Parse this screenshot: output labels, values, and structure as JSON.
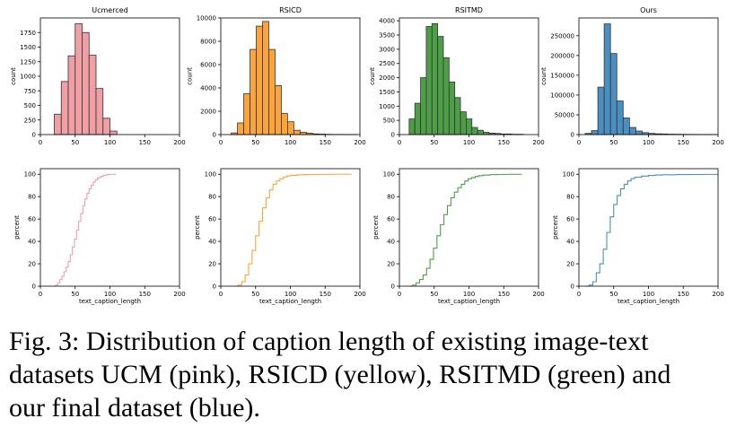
{
  "caption": {
    "lines": [
      "Fig. 3: Distribution of caption length of existing image-text",
      "datasets UCM (pink), RSICD (yellow), RSITMD (green) and",
      "our final dataset (blue)."
    ]
  },
  "chart_data": [
    {
      "type": "bar",
      "title": "Ucmerced",
      "xlabel": "",
      "ylabel": "count",
      "color": "#f0a0a4",
      "edge": "#333333",
      "bin_width": 10,
      "bins_start": [
        20,
        30,
        40,
        50,
        60,
        70,
        80,
        90,
        100
      ],
      "values": [
        350,
        910,
        1350,
        1900,
        1750,
        1360,
        790,
        280,
        60
      ],
      "xlim": [
        0,
        200
      ],
      "ylim": [
        0,
        2000
      ],
      "xticks": [
        "0",
        "50",
        "100",
        "150",
        "200"
      ],
      "yticks": [
        "0",
        "250",
        "500",
        "750",
        "1000",
        "1250",
        "1500",
        "1750"
      ]
    },
    {
      "type": "bar",
      "title": "RSICD",
      "xlabel": "",
      "ylabel": "count",
      "color": "#fba43c",
      "edge": "#333333",
      "bin_width": 9,
      "bins_start": [
        15,
        24,
        33,
        42,
        51,
        60,
        69,
        78,
        87,
        96,
        105,
        114,
        123,
        132,
        141,
        150,
        159,
        168,
        177,
        186
      ],
      "values": [
        140,
        1000,
        3500,
        7300,
        9300,
        9700,
        7300,
        4200,
        1800,
        1100,
        370,
        200,
        120,
        60,
        40,
        20,
        10,
        10,
        5,
        5
      ],
      "xlim": [
        0,
        200
      ],
      "ylim": [
        0,
        10000
      ],
      "xticks": [
        "0",
        "50",
        "100",
        "150",
        "200"
      ],
      "yticks": [
        "0",
        "2000",
        "4000",
        "6000",
        "8000",
        "10000"
      ]
    },
    {
      "type": "bar",
      "title": "RSITMD",
      "xlabel": "",
      "ylabel": "count",
      "color": "#4c9e47",
      "edge": "#333333",
      "bin_width": 8.2,
      "bins_start": [
        14,
        22.2,
        30.4,
        38.6,
        46.8,
        55,
        63.2,
        71.4,
        79.6,
        87.8,
        96,
        104.2,
        112.4,
        120.6,
        128.8,
        137,
        145.2,
        153.4,
        161.6,
        169.8
      ],
      "values": [
        550,
        1100,
        2000,
        3800,
        3900,
        3450,
        2700,
        1850,
        1300,
        800,
        550,
        250,
        150,
        80,
        50,
        40,
        20,
        20,
        10,
        10
      ],
      "xlim": [
        0,
        200
      ],
      "ylim": [
        0,
        4100
      ],
      "xticks": [
        "0",
        "50",
        "100",
        "150",
        "200"
      ],
      "yticks": [
        "0",
        "500",
        "1000",
        "1500",
        "2000",
        "2500",
        "3000",
        "3500",
        "4000"
      ]
    },
    {
      "type": "bar",
      "title": "Ours",
      "xlabel": "",
      "ylabel": "count",
      "color": "#4a8fc1",
      "edge": "#333333",
      "bin_width": 9.1,
      "bins_start": [
        9,
        18.1,
        27.2,
        36.3,
        45.4,
        54.5,
        63.6,
        72.7,
        81.8,
        90.9,
        100,
        109.1,
        118.2,
        127.3,
        136.4,
        145.5,
        154.6,
        163.7,
        172.8,
        181.9,
        191
      ],
      "values": [
        3000,
        10000,
        120000,
        280000,
        205000,
        85000,
        42000,
        18000,
        9000,
        5000,
        3000,
        2000,
        1500,
        1000,
        800,
        600,
        400,
        300,
        200,
        150,
        100
      ],
      "xlim": [
        0,
        200
      ],
      "ylim": [
        0,
        295000
      ],
      "xticks": [
        "0",
        "50",
        "100",
        "150",
        "200"
      ],
      "yticks": [
        "0",
        "50000",
        "100000",
        "150000",
        "200000",
        "250000"
      ]
    },
    {
      "type": "line",
      "title": "",
      "xlabel": "text_caption_length",
      "ylabel": "percent",
      "color": "#f0a0a4",
      "x": [
        19,
        22,
        25,
        28,
        31,
        34,
        37,
        40,
        43,
        46,
        49,
        52,
        55,
        58,
        61,
        64,
        67,
        70,
        73,
        76,
        79,
        82,
        85,
        88,
        91,
        94,
        97,
        100,
        103,
        106,
        109
      ],
      "y": [
        0,
        1,
        3,
        6,
        9,
        13,
        17,
        22,
        28,
        35,
        42,
        50,
        58,
        65,
        72,
        78,
        83,
        87,
        90,
        93,
        95,
        96.5,
        97.5,
        98.3,
        99,
        99.4,
        99.7,
        99.9,
        100,
        100,
        100
      ],
      "xlim": [
        0,
        200
      ],
      "ylim": [
        0,
        105
      ],
      "xticks": [
        "0",
        "50",
        "100",
        "150",
        "200"
      ],
      "yticks": [
        "0",
        "20",
        "40",
        "60",
        "80",
        "100"
      ]
    },
    {
      "type": "line",
      "title": "",
      "xlabel": "text_caption_length",
      "ylabel": "percent",
      "color": "#fba43c",
      "x": [
        20,
        25,
        30,
        35,
        40,
        45,
        50,
        55,
        60,
        65,
        70,
        75,
        80,
        85,
        90,
        95,
        100,
        110,
        120,
        130,
        140,
        150,
        160,
        170,
        180,
        188
      ],
      "y": [
        0,
        1,
        4,
        10,
        20,
        32,
        45,
        58,
        70,
        79,
        86,
        91,
        94,
        96,
        97.5,
        98.4,
        99,
        99.5,
        99.7,
        99.8,
        99.9,
        99.95,
        100,
        100,
        100,
        100
      ],
      "xlim": [
        0,
        200
      ],
      "ylim": [
        0,
        105
      ],
      "xticks": [
        "0",
        "50",
        "100",
        "150",
        "200"
      ],
      "yticks": [
        "0",
        "20",
        "40",
        "60",
        "80",
        "100"
      ]
    },
    {
      "type": "line",
      "title": "",
      "xlabel": "text_caption_length",
      "ylabel": "percent",
      "color": "#4c9e47",
      "x": [
        14,
        19,
        24,
        29,
        34,
        39,
        44,
        49,
        54,
        59,
        64,
        69,
        74,
        79,
        84,
        89,
        94,
        99,
        104,
        109,
        114,
        120,
        130,
        140,
        150,
        160,
        176
      ],
      "y": [
        0,
        1,
        3,
        6,
        10,
        16,
        24,
        34,
        45,
        55,
        64,
        72,
        79,
        84,
        88,
        91,
        94,
        96,
        97,
        98,
        98.7,
        99.2,
        99.6,
        99.8,
        99.9,
        100,
        100
      ],
      "xlim": [
        0,
        200
      ],
      "ylim": [
        0,
        105
      ],
      "xticks": [
        "0",
        "50",
        "100",
        "150",
        "200"
      ],
      "yticks": [
        "0",
        "20",
        "40",
        "60",
        "80",
        "100"
      ]
    },
    {
      "type": "line",
      "title": "",
      "xlabel": "text_caption_length",
      "ylabel": "percent",
      "color": "#4a8fc1",
      "x": [
        10,
        15,
        20,
        25,
        30,
        35,
        40,
        45,
        50,
        55,
        60,
        65,
        70,
        75,
        80,
        90,
        100,
        110,
        120,
        140,
        160,
        180,
        200
      ],
      "y": [
        0,
        1,
        4,
        12,
        20,
        33,
        48,
        62,
        73,
        81,
        87,
        91,
        94,
        96,
        97.3,
        98.3,
        98.9,
        99.3,
        99.5,
        99.7,
        99.8,
        99.9,
        100
      ],
      "xlim": [
        0,
        200
      ],
      "ylim": [
        0,
        105
      ],
      "xticks": [
        "0",
        "50",
        "100",
        "150",
        "200"
      ],
      "yticks": [
        "0",
        "20",
        "40",
        "60",
        "80",
        "100"
      ]
    }
  ]
}
